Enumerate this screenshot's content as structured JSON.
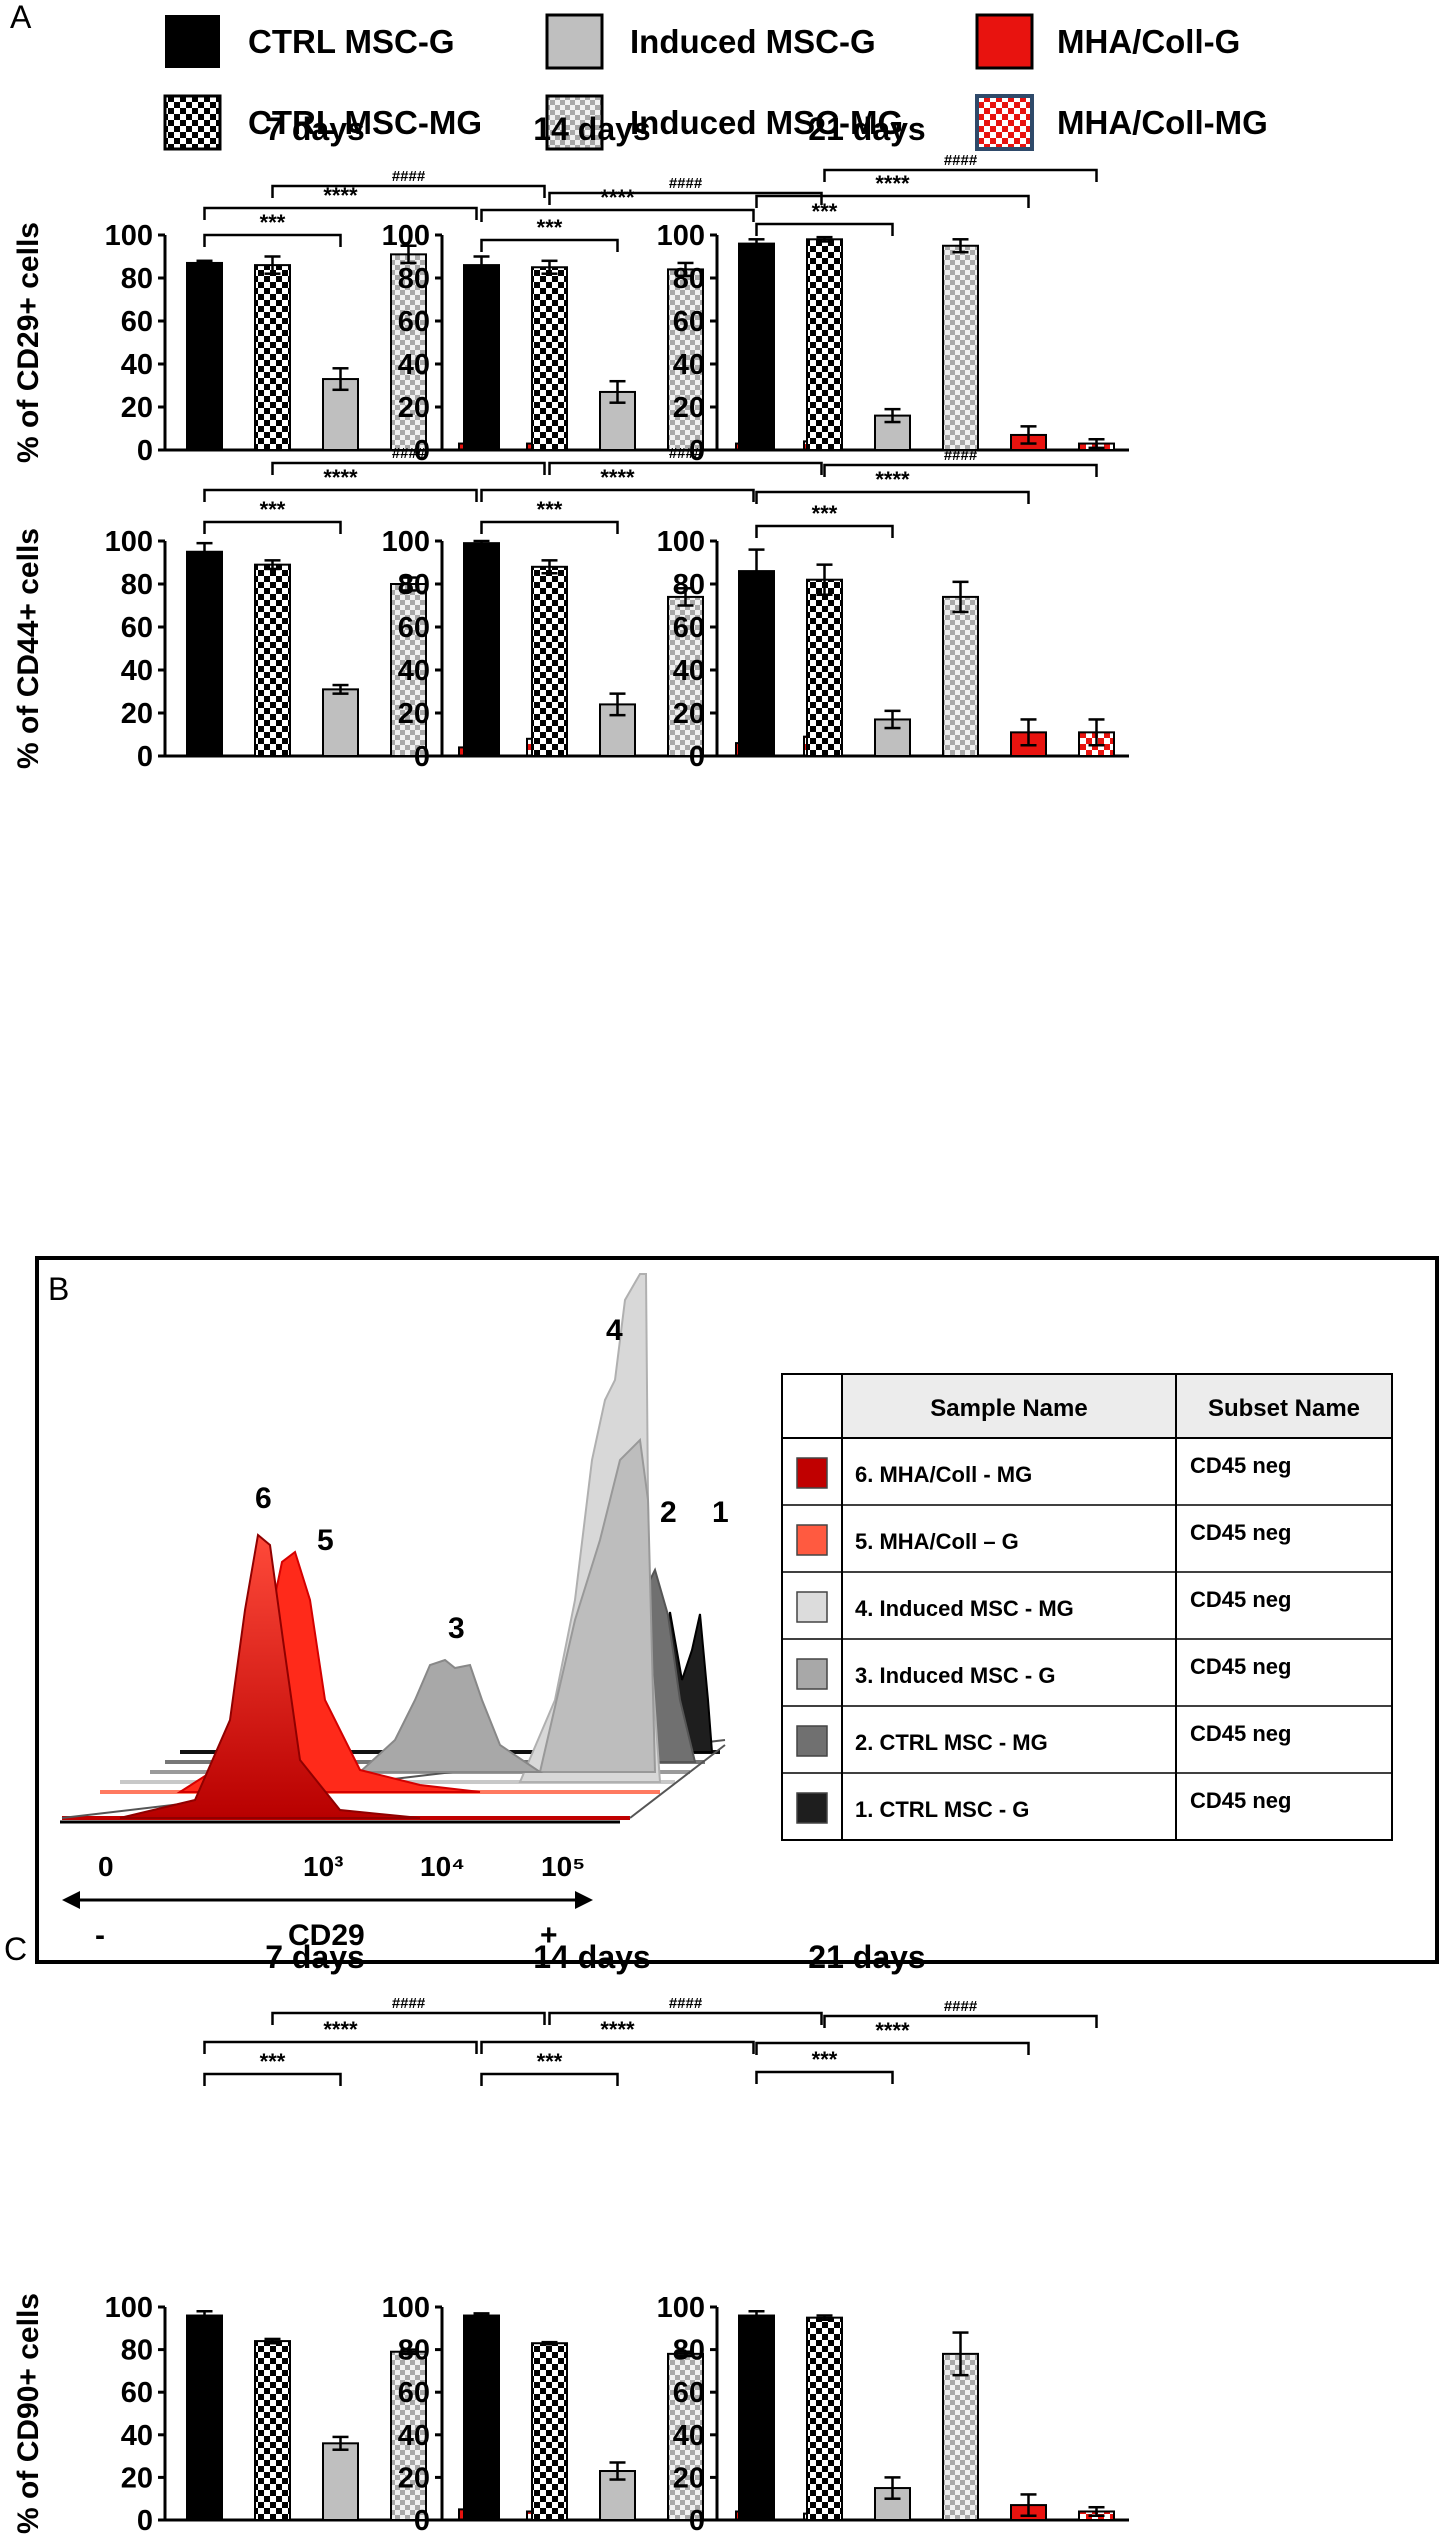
{
  "panel_labels": {
    "a": "A",
    "b": "B",
    "c": "C"
  },
  "legend": [
    {
      "label": "CTRL MSC-G",
      "color": "#000000",
      "pattern": "solid"
    },
    {
      "label": "Induced MSC-G",
      "color": "#bfbfbf",
      "pattern": "solid"
    },
    {
      "label": "MHA/Coll-G",
      "color": "#e8130f",
      "pattern": "solid"
    },
    {
      "label": "CTRL MSC-MG",
      "color": "#000000",
      "pattern": "checker"
    },
    {
      "label": "Induced MSC-MG",
      "color": "#bfbfbf",
      "pattern": "checker"
    },
    {
      "label": "MHA/Coll-MG",
      "color": "#e8130f",
      "pattern": "checker"
    }
  ],
  "sig": {
    "s3": "***",
    "s4": "****",
    "hash": "####"
  },
  "chart_data": [
    {
      "id": "a-cd29-7",
      "type": "bar",
      "title": "7 days",
      "ylabel": "% of CD29+ cells",
      "ylim": [
        0,
        100
      ],
      "yticks": [
        0,
        20,
        40,
        60,
        80,
        100
      ],
      "categories": [
        "CTRL MSC-G",
        "CTRL MSC-MG",
        "Induced MSC-G",
        "Induced MSC-MG",
        "MHA/Coll-G",
        "MHA/Coll-MG"
      ],
      "values": [
        87,
        86,
        33,
        91,
        3,
        3
      ],
      "errors": [
        1,
        4,
        5,
        4,
        1.5,
        1.5
      ]
    },
    {
      "id": "a-cd29-14",
      "type": "bar",
      "title": "14 days",
      "ylabel": "",
      "ylim": [
        0,
        100
      ],
      "yticks": [
        0,
        20,
        40,
        60,
        80,
        100
      ],
      "categories": [
        "CTRL MSC-G",
        "CTRL MSC-MG",
        "Induced MSC-G",
        "Induced MSC-MG",
        "MHA/Coll-G",
        "MHA/Coll-MG"
      ],
      "values": [
        86,
        85,
        27,
        84,
        3,
        4
      ],
      "errors": [
        4,
        3,
        5,
        3,
        1.5,
        1.5
      ]
    },
    {
      "id": "a-cd29-21",
      "type": "bar",
      "title": "21 days",
      "ylabel": "",
      "ylim": [
        0,
        100
      ],
      "yticks": [
        0,
        20,
        40,
        60,
        80,
        100
      ],
      "categories": [
        "CTRL MSC-G",
        "CTRL MSC-MG",
        "Induced MSC-G",
        "Induced MSC-MG",
        "MHA/Coll-G",
        "MHA/Coll-MG"
      ],
      "values": [
        96,
        98,
        16,
        95,
        7,
        3
      ],
      "errors": [
        2,
        1,
        3,
        3,
        4,
        2
      ]
    },
    {
      "id": "a-cd44-7",
      "type": "bar",
      "title": "",
      "ylabel": "% of CD44+ cells",
      "ylim": [
        0,
        100
      ],
      "yticks": [
        0,
        20,
        40,
        60,
        80,
        100
      ],
      "categories": [
        "CTRL MSC-G",
        "CTRL MSC-MG",
        "Induced MSC-G",
        "Induced MSC-MG",
        "MHA/Coll-G",
        "MHA/Coll-MG"
      ],
      "values": [
        95,
        89,
        31,
        80,
        4,
        8
      ],
      "errors": [
        4,
        2,
        2,
        3,
        2,
        2
      ]
    },
    {
      "id": "a-cd44-14",
      "type": "bar",
      "title": "",
      "ylabel": "",
      "ylim": [
        0,
        100
      ],
      "yticks": [
        0,
        20,
        40,
        60,
        80,
        100
      ],
      "categories": [
        "CTRL MSC-G",
        "CTRL MSC-MG",
        "Induced MSC-G",
        "Induced MSC-MG",
        "MHA/Coll-G",
        "MHA/Coll-MG"
      ],
      "values": [
        99,
        88,
        24,
        74,
        6,
        9
      ],
      "errors": [
        1,
        3,
        5,
        4,
        2,
        2
      ]
    },
    {
      "id": "a-cd44-21",
      "type": "bar",
      "title": "",
      "ylabel": "",
      "ylim": [
        0,
        100
      ],
      "yticks": [
        0,
        20,
        40,
        60,
        80,
        100
      ],
      "categories": [
        "CTRL MSC-G",
        "CTRL MSC-MG",
        "Induced MSC-G",
        "Induced MSC-MG",
        "MHA/Coll-G",
        "MHA/Coll-MG"
      ],
      "values": [
        86,
        82,
        17,
        74,
        11,
        11
      ],
      "errors": [
        10,
        7,
        4,
        7,
        6,
        6
      ]
    },
    {
      "id": "c-cd90-7",
      "type": "bar",
      "title": "7 days",
      "ylabel": "% of CD90+ cells",
      "ylim": [
        0,
        100
      ],
      "yticks": [
        0,
        20,
        40,
        60,
        80,
        100
      ],
      "categories": [
        "CTRL MSC-G",
        "CTRL MSC-MG",
        "Induced MSC-G",
        "Induced MSC-MG",
        "MHA/Coll-G",
        "MHA/Coll-MG"
      ],
      "values": [
        96,
        84,
        36,
        79,
        5,
        4
      ],
      "errors": [
        2,
        1,
        3,
        1,
        2,
        1
      ]
    },
    {
      "id": "c-cd90-14",
      "type": "bar",
      "title": "14 days",
      "ylabel": "",
      "ylim": [
        0,
        100
      ],
      "yticks": [
        0,
        20,
        40,
        60,
        80,
        100
      ],
      "categories": [
        "CTRL MSC-G",
        "CTRL MSC-MG",
        "Induced MSC-G",
        "Induced MSC-MG",
        "MHA/Coll-G",
        "MHA/Coll-MG"
      ],
      "values": [
        96,
        83,
        23,
        78,
        4,
        3
      ],
      "errors": [
        1,
        0.5,
        4,
        1,
        2,
        1
      ]
    },
    {
      "id": "c-cd90-21",
      "type": "bar",
      "title": "21 days",
      "ylabel": "",
      "ylim": [
        0,
        100
      ],
      "yticks": [
        0,
        20,
        40,
        60,
        80,
        100
      ],
      "categories": [
        "CTRL MSC-G",
        "CTRL MSC-MG",
        "Induced MSC-G",
        "Induced MSC-MG",
        "MHA/Coll-G",
        "MHA/Coll-MG"
      ],
      "values": [
        96,
        95,
        15,
        78,
        7,
        4
      ],
      "errors": [
        2,
        1,
        5,
        10,
        5,
        2
      ]
    }
  ],
  "histogram": {
    "type": "overlay-histogram",
    "xlabel": "CD29",
    "axis_ticks": [
      "0",
      "10³",
      "10⁴",
      "10⁵"
    ],
    "axis_minus": "-",
    "axis_plus": "+",
    "peak_labels": [
      "6",
      "5",
      "3",
      "4",
      "2",
      "1"
    ],
    "table_headers": [
      "Sample Name",
      "Subset Name"
    ],
    "rows": [
      {
        "name": "6. MHA/Coll - MG",
        "subset": "CD45 neg",
        "color": "#c00000"
      },
      {
        "name": "5. MHA/Coll – G",
        "subset": "CD45 neg",
        "color": "#ff5a40"
      },
      {
        "name": "4. Induced MSC - MG",
        "subset": "CD45 neg",
        "color": "#dcdcdc"
      },
      {
        "name": "3. Induced MSC - G",
        "subset": "CD45 neg",
        "color": "#a8a8a8"
      },
      {
        "name": "2. CTRL MSC - MG",
        "subset": "CD45 neg",
        "color": "#707070"
      },
      {
        "name": "1. CTRL MSC - G",
        "subset": "CD45 neg",
        "color": "#1e1e1e"
      }
    ]
  }
}
